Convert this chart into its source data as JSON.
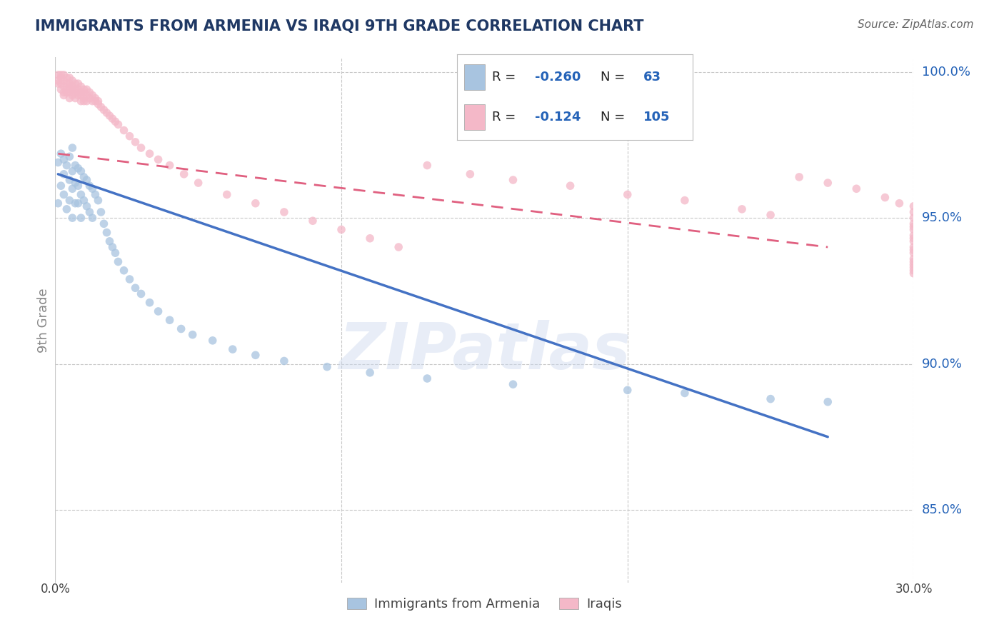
{
  "title": "IMMIGRANTS FROM ARMENIA VS IRAQI 9TH GRADE CORRELATION CHART",
  "source_text": "Source: ZipAtlas.com",
  "ylabel": "9th Grade",
  "legend_label1": "Immigrants from Armenia",
  "legend_label2": "Iraqis",
  "R1": -0.26,
  "N1": 63,
  "R2": -0.124,
  "N2": 105,
  "color_armenia": "#a8c4e0",
  "color_iraq": "#f4b8c8",
  "color_armenia_line": "#4472c4",
  "color_iraq_line": "#e06080",
  "color_title": "#1f3864",
  "color_R_value": "#2563b8",
  "color_source": "#666666",
  "dot_alpha": 0.75,
  "dot_size": 70,
  "armenia_x": [
    0.001,
    0.001,
    0.002,
    0.002,
    0.003,
    0.003,
    0.003,
    0.004,
    0.004,
    0.005,
    0.005,
    0.005,
    0.006,
    0.006,
    0.006,
    0.006,
    0.007,
    0.007,
    0.007,
    0.008,
    0.008,
    0.008,
    0.009,
    0.009,
    0.009,
    0.01,
    0.01,
    0.011,
    0.011,
    0.012,
    0.012,
    0.013,
    0.013,
    0.014,
    0.015,
    0.016,
    0.017,
    0.018,
    0.019,
    0.02,
    0.021,
    0.022,
    0.024,
    0.026,
    0.028,
    0.03,
    0.033,
    0.036,
    0.04,
    0.044,
    0.048,
    0.055,
    0.062,
    0.07,
    0.08,
    0.095,
    0.11,
    0.13,
    0.16,
    0.2,
    0.22,
    0.25,
    0.27
  ],
  "armenia_y": [
    0.969,
    0.955,
    0.972,
    0.961,
    0.97,
    0.965,
    0.958,
    0.968,
    0.953,
    0.971,
    0.963,
    0.956,
    0.974,
    0.966,
    0.96,
    0.95,
    0.968,
    0.962,
    0.955,
    0.967,
    0.961,
    0.955,
    0.966,
    0.958,
    0.95,
    0.964,
    0.956,
    0.963,
    0.954,
    0.961,
    0.952,
    0.96,
    0.95,
    0.958,
    0.956,
    0.952,
    0.948,
    0.945,
    0.942,
    0.94,
    0.938,
    0.935,
    0.932,
    0.929,
    0.926,
    0.924,
    0.921,
    0.918,
    0.915,
    0.912,
    0.91,
    0.908,
    0.905,
    0.903,
    0.901,
    0.899,
    0.897,
    0.895,
    0.893,
    0.891,
    0.89,
    0.888,
    0.887
  ],
  "iraq_x": [
    0.001,
    0.001,
    0.001,
    0.002,
    0.002,
    0.002,
    0.002,
    0.003,
    0.003,
    0.003,
    0.003,
    0.003,
    0.004,
    0.004,
    0.004,
    0.004,
    0.005,
    0.005,
    0.005,
    0.005,
    0.005,
    0.006,
    0.006,
    0.006,
    0.006,
    0.007,
    0.007,
    0.007,
    0.007,
    0.008,
    0.008,
    0.008,
    0.009,
    0.009,
    0.009,
    0.009,
    0.01,
    0.01,
    0.01,
    0.01,
    0.011,
    0.011,
    0.011,
    0.012,
    0.012,
    0.013,
    0.013,
    0.014,
    0.014,
    0.015,
    0.015,
    0.016,
    0.017,
    0.018,
    0.019,
    0.02,
    0.021,
    0.022,
    0.024,
    0.026,
    0.028,
    0.03,
    0.033,
    0.036,
    0.04,
    0.045,
    0.05,
    0.06,
    0.07,
    0.08,
    0.09,
    0.1,
    0.11,
    0.12,
    0.13,
    0.145,
    0.16,
    0.18,
    0.2,
    0.22,
    0.24,
    0.25,
    0.26,
    0.27,
    0.28,
    0.29,
    0.295,
    0.3,
    0.3,
    0.3,
    0.3,
    0.3,
    0.3,
    0.3,
    0.3,
    0.3,
    0.3,
    0.3,
    0.3,
    0.3,
    0.3,
    0.3,
    0.3,
    0.3,
    0.3
  ],
  "iraq_y": [
    0.999,
    0.997,
    0.996,
    0.999,
    0.998,
    0.996,
    0.994,
    0.999,
    0.997,
    0.995,
    0.993,
    0.992,
    0.998,
    0.996,
    0.994,
    0.993,
    0.998,
    0.996,
    0.995,
    0.993,
    0.991,
    0.997,
    0.995,
    0.994,
    0.992,
    0.996,
    0.994,
    0.993,
    0.991,
    0.996,
    0.994,
    0.992,
    0.995,
    0.993,
    0.992,
    0.99,
    0.994,
    0.993,
    0.991,
    0.99,
    0.994,
    0.992,
    0.99,
    0.993,
    0.991,
    0.992,
    0.99,
    0.991,
    0.99,
    0.99,
    0.989,
    0.988,
    0.987,
    0.986,
    0.985,
    0.984,
    0.983,
    0.982,
    0.98,
    0.978,
    0.976,
    0.974,
    0.972,
    0.97,
    0.968,
    0.965,
    0.962,
    0.958,
    0.955,
    0.952,
    0.949,
    0.946,
    0.943,
    0.94,
    0.968,
    0.965,
    0.963,
    0.961,
    0.958,
    0.956,
    0.953,
    0.951,
    0.964,
    0.962,
    0.96,
    0.957,
    0.955,
    0.954,
    0.952,
    0.95,
    0.948,
    0.947,
    0.946,
    0.944,
    0.943,
    0.942,
    0.94,
    0.939,
    0.938,
    0.936,
    0.935,
    0.934,
    0.933,
    0.932,
    0.931
  ],
  "xlim": [
    0.0,
    0.3
  ],
  "ylim": [
    0.825,
    1.005
  ],
  "yticks": [
    0.85,
    0.9,
    0.95,
    1.0
  ],
  "ytick_labels": [
    "85.0%",
    "90.0%",
    "95.0%",
    "100.0%"
  ],
  "arm_line_x": [
    0.001,
    0.27
  ],
  "arm_line_y": [
    0.965,
    0.875
  ],
  "iraq_line_x": [
    0.001,
    0.27
  ],
  "iraq_line_y": [
    0.972,
    0.94
  ],
  "grid_color": "#c8c8c8",
  "background_color": "#ffffff",
  "watermark_text": "ZIPatlas",
  "watermark_color": "#ccd8ee",
  "watermark_alpha": 0.45
}
